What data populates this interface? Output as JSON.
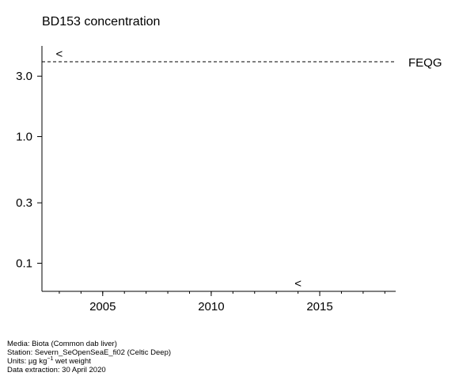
{
  "chart_data": {
    "type": "scatter",
    "title": "BD153 concentration",
    "xlabel": "",
    "ylabel": "",
    "x_ticks": [
      "2005",
      "2010",
      "2015"
    ],
    "y_ticks": [
      "0.1",
      "0.3",
      "1.0",
      "3.0"
    ],
    "y_scale": "log",
    "xlim": [
      2002.2,
      2018.5
    ],
    "ylim": [
      0.06,
      5.2
    ],
    "grid": false,
    "points": [
      {
        "x": 2003,
        "y": 4.5,
        "marker": "<",
        "label": "less-than value"
      },
      {
        "x": 2014,
        "y": 0.055,
        "marker": "<",
        "label": "less-than value"
      }
    ],
    "reference_line": {
      "name": "FEQG",
      "y": 3.9,
      "style": "dashed"
    }
  },
  "footer": {
    "media": "Media: Biota (Common dab liver)",
    "station": "Station: Severn_SeOpenSeaE_fi02 (Celtic Deep)",
    "units_prefix": "Units:  µg kg",
    "units_sup": "−1",
    "units_suffix": " wet weight",
    "extraction": "Data extraction: 30 April 2020"
  }
}
